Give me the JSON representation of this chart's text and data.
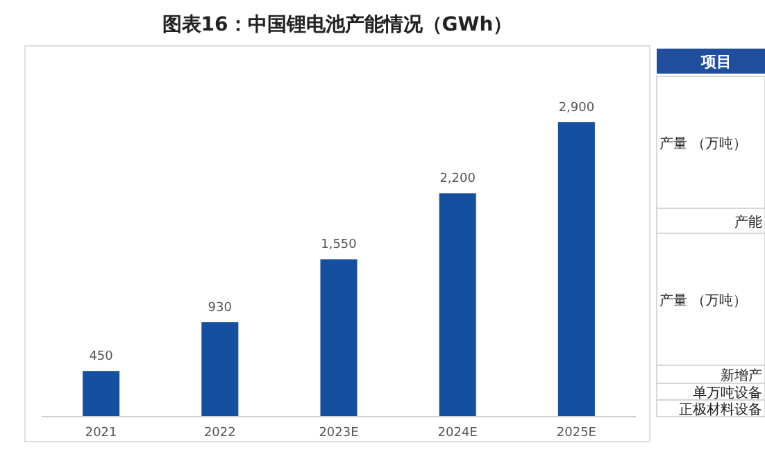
{
  "chart_data": [
    {
      "type": "bar",
      "title": "图表16：中国锂电池产能情况（GWh）",
      "categories": [
        "2021",
        "2022",
        "2023E",
        "2024E",
        "2025E"
      ],
      "values": [
        450,
        930,
        1550,
        2200,
        2900
      ],
      "color": "#1550a0",
      "value_labels": [
        "450",
        "930",
        "1,550",
        "2,200",
        "2,900"
      ],
      "grid": false
    },
    {
      "type": "other",
      "title": "项目",
      "annotations": [
        "产量 （万吨）",
        "产能",
        "产量 （万吨）",
        "新增产",
        "单万吨设备",
        "正极材料设备"
      ]
    }
  ]
}
